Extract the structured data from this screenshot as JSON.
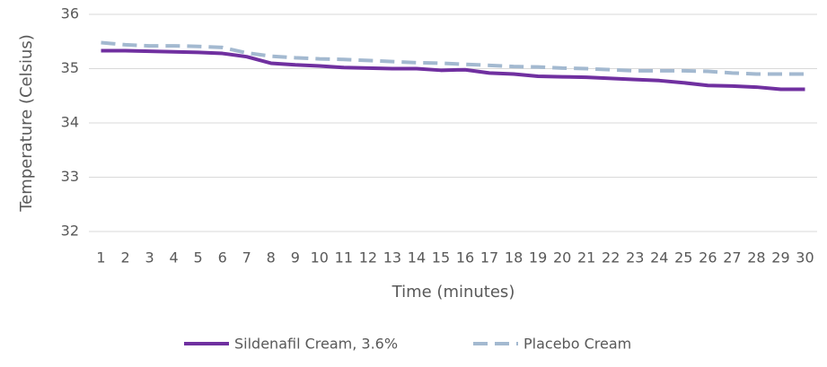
{
  "chart_data": {
    "type": "line",
    "x_label": "Time (minutes)",
    "y_label": "Temperature (Celsius)",
    "categories": [
      "1",
      "2",
      "3",
      "4",
      "5",
      "6",
      "7",
      "8",
      "9",
      "10",
      "11",
      "12",
      "13",
      "14",
      "15",
      "16",
      "17",
      "18",
      "19",
      "20",
      "21",
      "22",
      "23",
      "24",
      "25",
      "26",
      "27",
      "28",
      "29",
      "30"
    ],
    "series": [
      {
        "name": "Sildenafil Cream, 3.6%",
        "color": "#7030a0",
        "dash": false,
        "values": [
          35.33,
          35.33,
          35.32,
          35.31,
          35.3,
          35.28,
          35.22,
          35.1,
          35.07,
          35.05,
          35.02,
          35.01,
          35.0,
          35.0,
          34.97,
          34.98,
          34.92,
          34.9,
          34.86,
          34.85,
          34.84,
          34.82,
          34.8,
          34.78,
          34.74,
          34.69,
          34.68,
          34.66,
          34.62,
          34.62
        ]
      },
      {
        "name": "Placebo Cream",
        "color": "#a3b9d0",
        "dash": true,
        "values": [
          35.48,
          35.44,
          35.42,
          35.42,
          35.41,
          35.39,
          35.29,
          35.23,
          35.2,
          35.18,
          35.17,
          35.15,
          35.13,
          35.11,
          35.1,
          35.08,
          35.06,
          35.04,
          35.03,
          35.01,
          35.0,
          34.98,
          34.96,
          34.96,
          34.96,
          34.95,
          34.92,
          34.9,
          34.9,
          34.9
        ]
      }
    ],
    "ylim": [
      32,
      36
    ],
    "yticks": [
      32,
      33,
      34,
      35,
      36
    ],
    "grid": true,
    "legend": "bottom"
  }
}
